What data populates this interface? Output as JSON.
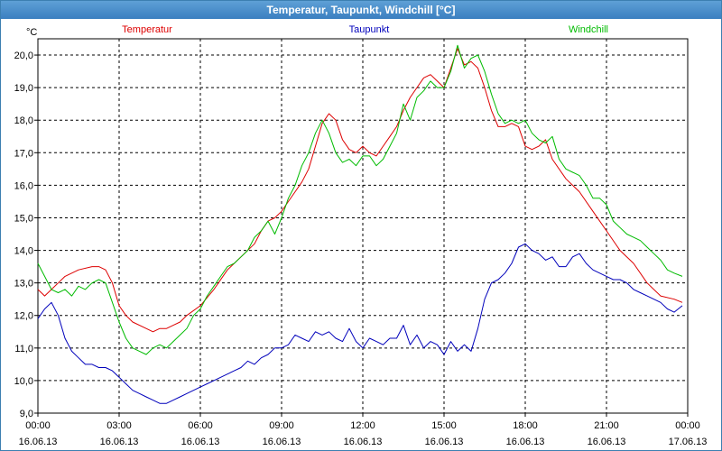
{
  "window": {
    "title": "Temperatur, Taupunkt, Windchill [°C]"
  },
  "chart_data": {
    "type": "line",
    "title": "Temperatur, Taupunkt, Windchill [°C]",
    "ylabel": "°C",
    "ylim": [
      9.0,
      20.5
    ],
    "yticks": [
      9.0,
      10.0,
      11.0,
      12.0,
      13.0,
      14.0,
      15.0,
      16.0,
      17.0,
      18.0,
      19.0,
      20.0
    ],
    "ytick_labels": [
      "9,0",
      "10,0",
      "11,0",
      "12,0",
      "13,0",
      "14,0",
      "15,0",
      "16,0",
      "17,0",
      "18,0",
      "19,0",
      "20,0"
    ],
    "xlim": [
      0,
      24
    ],
    "xticks": [
      0,
      3,
      6,
      9,
      12,
      15,
      18,
      21,
      24
    ],
    "xtick_labels": [
      [
        "00:00",
        "16.06.13"
      ],
      [
        "03:00",
        "16.06.13"
      ],
      [
        "06:00",
        "16.06.13"
      ],
      [
        "09:00",
        "16.06.13"
      ],
      [
        "12:00",
        "16.06.13"
      ],
      [
        "15:00",
        "16.06.13"
      ],
      [
        "18:00",
        "16.06.13"
      ],
      [
        "21:00",
        "16.06.13"
      ],
      [
        "00:00",
        "17.06.13"
      ]
    ],
    "grid": true,
    "legend_position": "top",
    "series": [
      {
        "name": "Temperatur",
        "color": "#dd0000",
        "x": [
          0,
          0.25,
          0.5,
          0.75,
          1,
          1.5,
          2,
          2.25,
          2.5,
          2.75,
          3,
          3.25,
          3.5,
          4,
          4.25,
          4.5,
          4.75,
          5,
          5.25,
          5.5,
          6,
          6.5,
          7,
          7.5,
          8,
          8.25,
          8.5,
          8.75,
          9,
          9.25,
          9.5,
          9.75,
          10,
          10.25,
          10.5,
          10.75,
          11,
          11.25,
          11.5,
          11.75,
          12,
          12.25,
          12.5,
          12.75,
          13,
          13.25,
          13.5,
          13.75,
          14,
          14.25,
          14.5,
          14.75,
          15,
          15.25,
          15.5,
          15.75,
          16,
          16.25,
          16.5,
          16.75,
          17,
          17.25,
          17.5,
          17.75,
          18,
          18.25,
          18.5,
          18.75,
          19,
          19.5,
          20,
          20.5,
          21,
          21.5,
          22,
          22.5,
          23,
          23.5,
          23.8
        ],
        "y": [
          12.8,
          12.6,
          12.8,
          13.0,
          13.2,
          13.4,
          13.5,
          13.5,
          13.4,
          13.0,
          12.3,
          12.0,
          11.8,
          11.6,
          11.5,
          11.6,
          11.6,
          11.7,
          11.8,
          12.0,
          12.3,
          12.8,
          13.4,
          13.8,
          14.2,
          14.6,
          14.9,
          15.0,
          15.2,
          15.5,
          15.8,
          16.1,
          16.5,
          17.2,
          17.9,
          18.2,
          18.0,
          17.4,
          17.1,
          17.0,
          17.2,
          17.0,
          16.9,
          17.2,
          17.5,
          17.8,
          18.3,
          18.7,
          19.0,
          19.3,
          19.4,
          19.2,
          19.0,
          19.6,
          20.2,
          19.7,
          19.8,
          19.6,
          19.0,
          18.3,
          17.8,
          17.8,
          17.9,
          17.8,
          17.2,
          17.1,
          17.2,
          17.4,
          16.8,
          16.2,
          15.8,
          15.2,
          14.6,
          14.0,
          13.6,
          13.0,
          12.6,
          12.5,
          12.4
        ]
      },
      {
        "name": "Taupunkt",
        "color": "#0000bb",
        "x": [
          0,
          0.25,
          0.5,
          0.75,
          1,
          1.25,
          1.5,
          1.75,
          2,
          2.25,
          2.5,
          2.75,
          3,
          3.25,
          3.5,
          3.75,
          4,
          4.25,
          4.5,
          4.75,
          5,
          5.25,
          5.5,
          5.75,
          6,
          6.25,
          6.5,
          6.75,
          7,
          7.25,
          7.5,
          7.75,
          8,
          8.25,
          8.5,
          8.75,
          9,
          9.25,
          9.5,
          9.75,
          10,
          10.25,
          10.5,
          10.75,
          11,
          11.25,
          11.5,
          11.75,
          12,
          12.25,
          12.5,
          12.75,
          13,
          13.25,
          13.5,
          13.75,
          14,
          14.25,
          14.5,
          14.75,
          15,
          15.25,
          15.5,
          15.75,
          16,
          16.25,
          16.5,
          16.75,
          17,
          17.25,
          17.5,
          17.75,
          18,
          18.25,
          18.5,
          18.75,
          19,
          19.25,
          19.5,
          19.75,
          20,
          20.25,
          20.5,
          20.75,
          21,
          21.25,
          21.5,
          21.75,
          22,
          22.25,
          22.5,
          22.75,
          23,
          23.25,
          23.5,
          23.8
        ],
        "y": [
          11.9,
          12.2,
          12.4,
          12.0,
          11.3,
          10.9,
          10.7,
          10.5,
          10.5,
          10.4,
          10.4,
          10.3,
          10.1,
          9.9,
          9.7,
          9.6,
          9.5,
          9.4,
          9.3,
          9.3,
          9.4,
          9.5,
          9.6,
          9.7,
          9.8,
          9.9,
          10.0,
          10.1,
          10.2,
          10.3,
          10.4,
          10.6,
          10.5,
          10.7,
          10.8,
          11.0,
          11.0,
          11.1,
          11.4,
          11.3,
          11.2,
          11.5,
          11.4,
          11.5,
          11.3,
          11.2,
          11.6,
          11.2,
          11.0,
          11.3,
          11.2,
          11.1,
          11.3,
          11.3,
          11.7,
          11.1,
          11.4,
          11.0,
          11.2,
          11.1,
          10.8,
          11.2,
          10.9,
          11.1,
          10.9,
          11.6,
          12.5,
          13.0,
          13.1,
          13.3,
          13.6,
          14.1,
          14.2,
          14.0,
          13.9,
          13.7,
          13.8,
          13.5,
          13.5,
          13.8,
          13.9,
          13.6,
          13.4,
          13.3,
          13.2,
          13.1,
          13.1,
          13.0,
          12.8,
          12.7,
          12.6,
          12.5,
          12.4,
          12.2,
          12.1,
          12.3
        ]
      },
      {
        "name": "Windchill",
        "color": "#00bb00",
        "x": [
          0,
          0.25,
          0.5,
          0.75,
          1,
          1.25,
          1.5,
          1.75,
          2,
          2.25,
          2.5,
          2.75,
          3,
          3.25,
          3.5,
          3.75,
          4,
          4.25,
          4.5,
          4.75,
          5,
          5.25,
          5.5,
          5.75,
          6,
          6.25,
          6.5,
          6.75,
          7,
          7.25,
          7.5,
          7.75,
          8,
          8.25,
          8.5,
          8.75,
          9,
          9.25,
          9.5,
          9.75,
          10,
          10.25,
          10.5,
          10.75,
          11,
          11.25,
          11.5,
          11.75,
          12,
          12.25,
          12.5,
          12.75,
          13,
          13.25,
          13.5,
          13.75,
          14,
          14.25,
          14.5,
          14.75,
          15,
          15.25,
          15.5,
          15.75,
          16,
          16.25,
          16.5,
          16.75,
          17,
          17.25,
          17.5,
          17.75,
          18,
          18.25,
          18.5,
          18.75,
          19,
          19.25,
          19.5,
          19.75,
          20,
          20.25,
          20.5,
          20.75,
          21,
          21.25,
          21.5,
          21.75,
          22,
          22.25,
          22.5,
          22.75,
          23,
          23.25,
          23.5,
          23.8
        ],
        "y": [
          13.6,
          13.2,
          12.8,
          12.7,
          12.8,
          12.6,
          12.9,
          12.8,
          13.0,
          13.1,
          13.0,
          12.4,
          11.8,
          11.3,
          11.0,
          10.9,
          10.8,
          11.0,
          11.1,
          11.0,
          11.2,
          11.4,
          11.6,
          12.0,
          12.2,
          12.6,
          12.9,
          13.2,
          13.5,
          13.6,
          13.8,
          14.0,
          14.4,
          14.6,
          14.9,
          14.5,
          15.0,
          15.6,
          16.0,
          16.6,
          17.0,
          17.6,
          18.0,
          17.6,
          17.0,
          16.7,
          16.8,
          16.6,
          16.9,
          16.9,
          16.6,
          16.8,
          17.2,
          17.6,
          18.5,
          18.0,
          18.7,
          18.9,
          19.2,
          19.0,
          19.0,
          19.5,
          20.3,
          19.6,
          19.9,
          20.0,
          19.5,
          18.8,
          18.2,
          17.9,
          18.0,
          17.9,
          18.0,
          17.6,
          17.4,
          17.3,
          17.5,
          16.8,
          16.5,
          16.4,
          16.3,
          16.0,
          15.6,
          15.6,
          15.4,
          14.9,
          14.7,
          14.5,
          14.4,
          14.3,
          14.1,
          13.9,
          13.7,
          13.4,
          13.3,
          13.2
        ]
      }
    ]
  }
}
